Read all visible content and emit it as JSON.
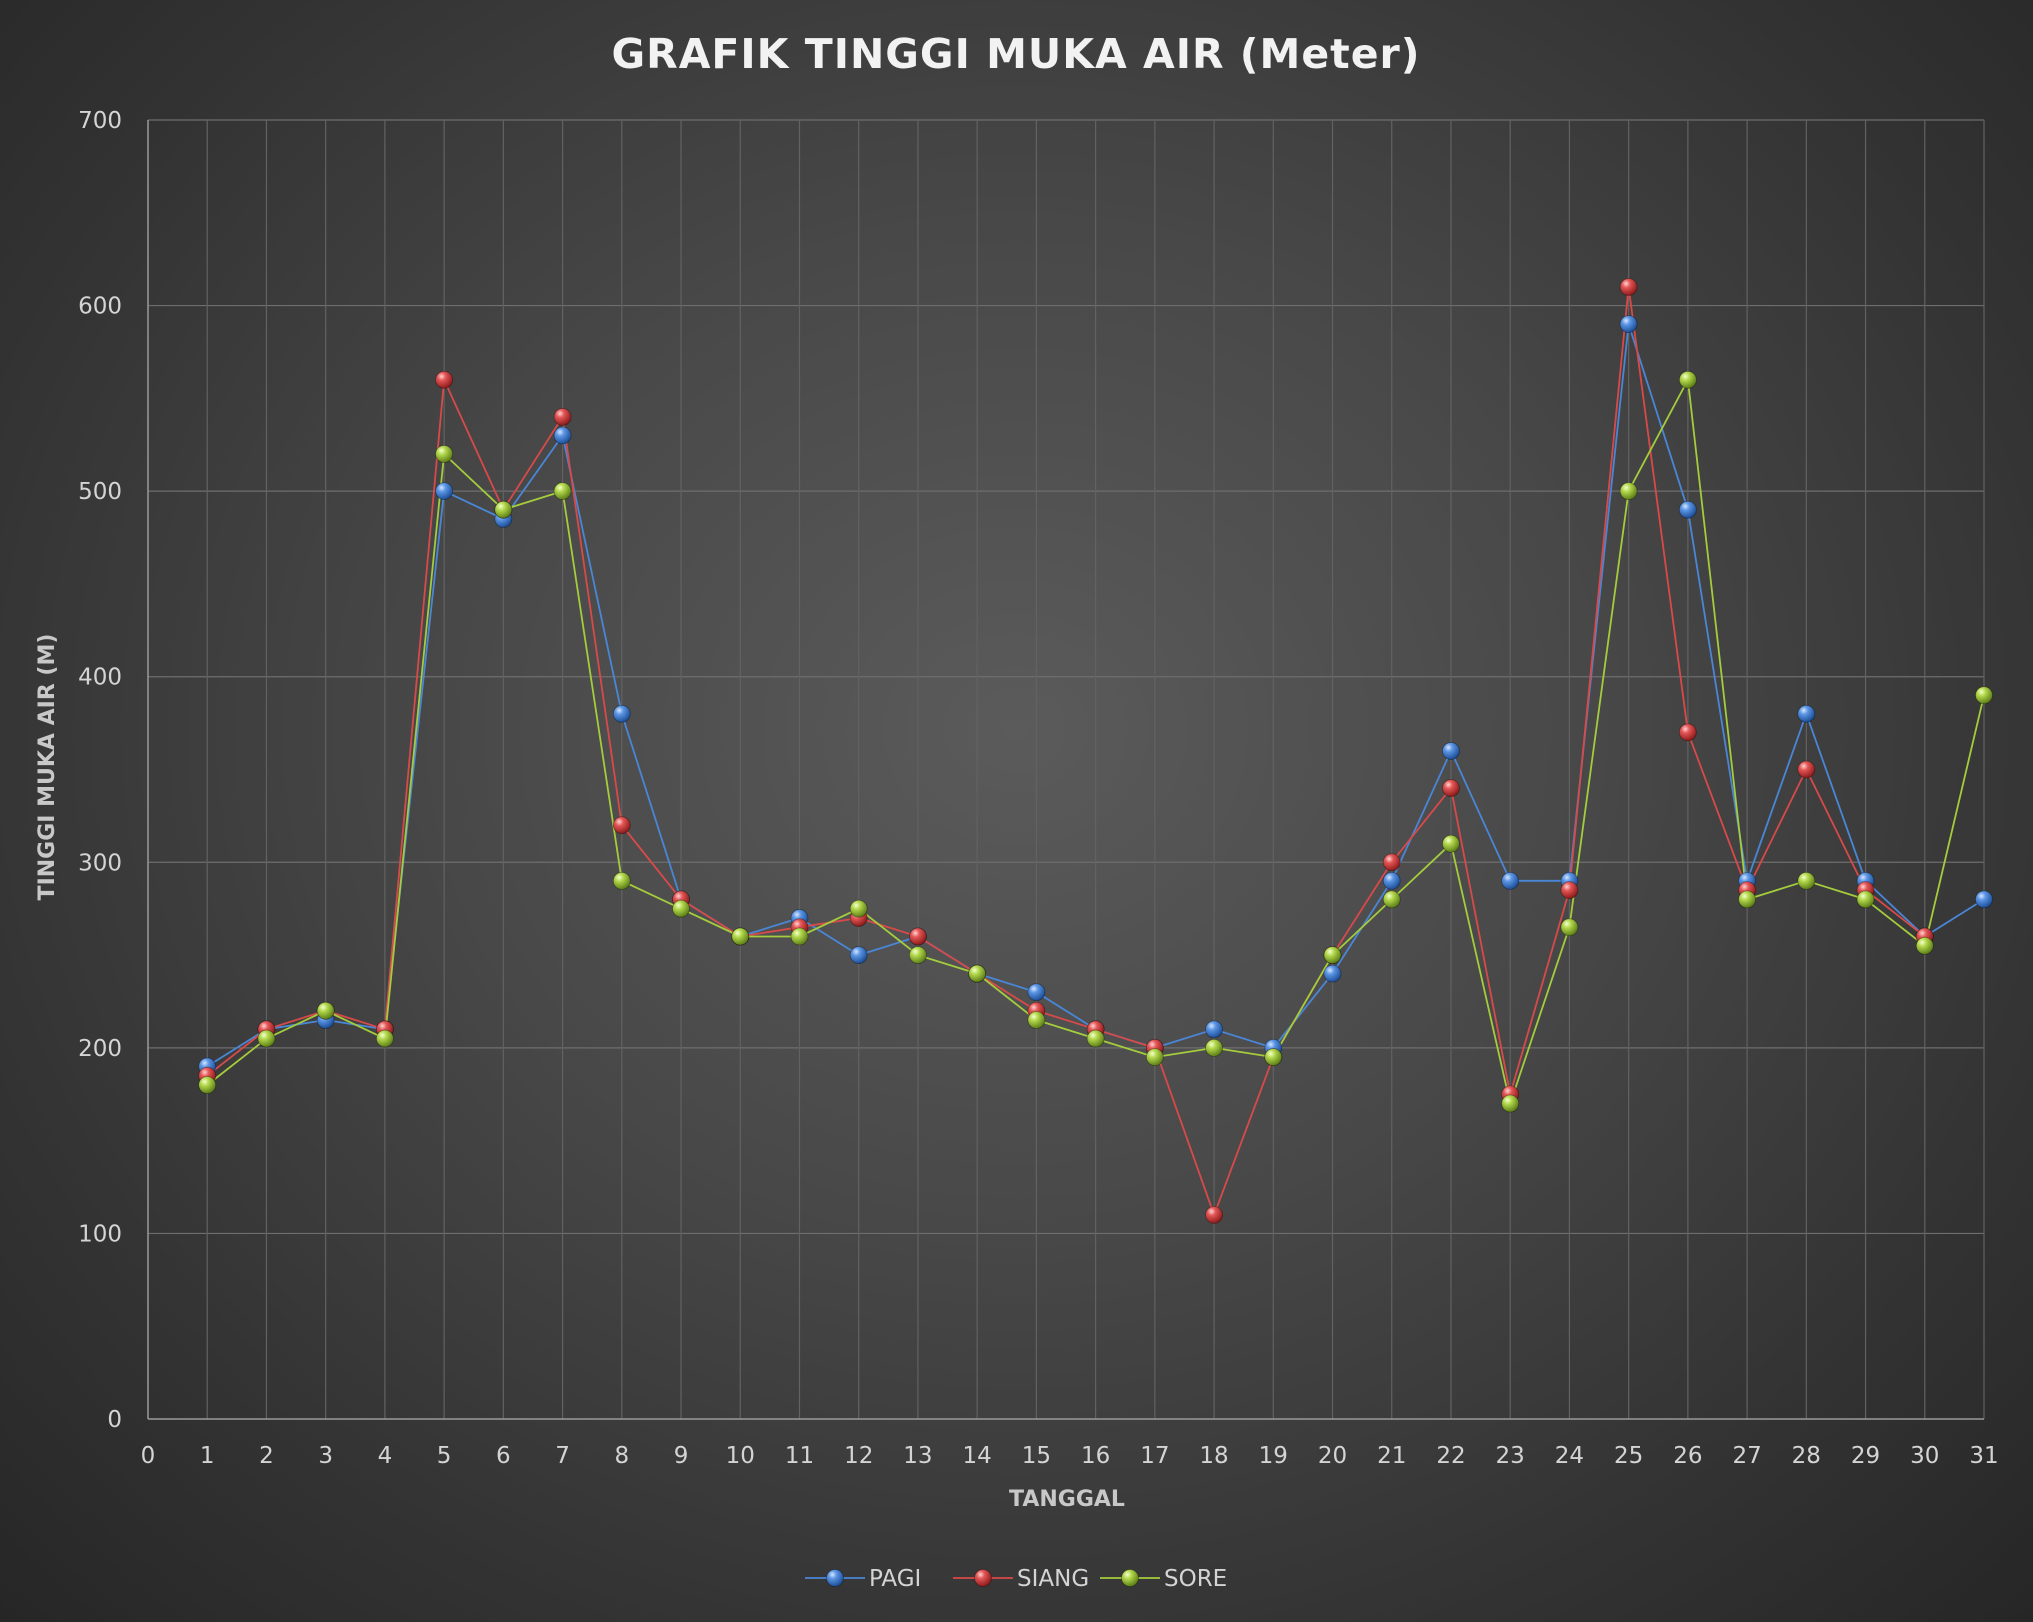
{
  "chart_data": {
    "type": "line",
    "title": "GRAFIK TINGGI MUKA AIR (Meter)",
    "xlabel": "TANGGAL",
    "ylabel": "TINGGI MUKA AIR (M)",
    "xlim": [
      0,
      31
    ],
    "ylim": [
      0,
      700
    ],
    "x_ticks": [
      0,
      1,
      2,
      3,
      4,
      5,
      6,
      7,
      8,
      9,
      10,
      11,
      12,
      13,
      14,
      15,
      16,
      17,
      18,
      19,
      20,
      21,
      22,
      23,
      24,
      25,
      26,
      27,
      28,
      29,
      30,
      31
    ],
    "y_ticks": [
      0,
      100,
      200,
      300,
      400,
      500,
      600,
      700
    ],
    "grid": true,
    "legend_position": "bottom",
    "x": [
      1,
      2,
      3,
      4,
      5,
      6,
      7,
      8,
      9,
      10,
      11,
      12,
      13,
      14,
      15,
      16,
      17,
      18,
      19,
      20,
      21,
      22,
      23,
      24,
      25,
      26,
      27,
      28,
      29,
      30,
      31
    ],
    "series": [
      {
        "name": "PAGI",
        "color": "#4a86d6",
        "values": [
          190,
          210,
          215,
          210,
          500,
          485,
          530,
          380,
          280,
          260,
          270,
          250,
          260,
          240,
          230,
          210,
          200,
          210,
          200,
          240,
          290,
          360,
          290,
          290,
          590,
          490,
          290,
          380,
          290,
          260,
          280
        ]
      },
      {
        "name": "SIANG",
        "color": "#d84a4a",
        "values": [
          185,
          210,
          220,
          210,
          560,
          490,
          540,
          320,
          280,
          260,
          265,
          270,
          260,
          240,
          220,
          210,
          200,
          110,
          195,
          250,
          300,
          340,
          175,
          285,
          610,
          370,
          285,
          350,
          285,
          260,
          null
        ]
      },
      {
        "name": "SORE",
        "color": "#a4cc3c",
        "values": [
          180,
          205,
          220,
          205,
          520,
          490,
          500,
          290,
          275,
          260,
          260,
          275,
          250,
          240,
          215,
          205,
          195,
          200,
          195,
          250,
          280,
          310,
          170,
          265,
          500,
          560,
          280,
          290,
          280,
          255,
          390
        ]
      }
    ]
  }
}
